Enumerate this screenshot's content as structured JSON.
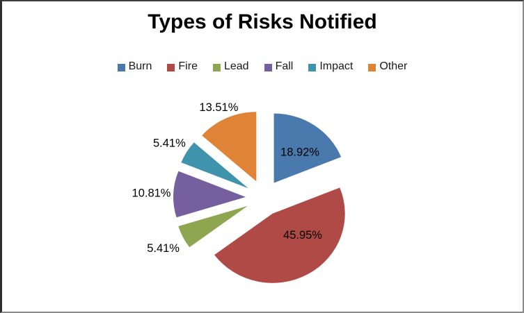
{
  "chart_data": {
    "type": "pie",
    "title": "Types of Risks Notified",
    "categories": [
      "Burn",
      "Fire",
      "Lead",
      "Fall",
      "Impact",
      "Other"
    ],
    "values": [
      18.92,
      45.95,
      5.41,
      10.81,
      5.41,
      13.51
    ],
    "labels": [
      "18.92%",
      "45.95%",
      "5.41%",
      "10.81%",
      "5.41%",
      "13.51%"
    ],
    "unit": "percent",
    "colors": [
      "#4A79AD",
      "#B04A47",
      "#8DA64F",
      "#755F9E",
      "#4093AC",
      "#DF8437"
    ],
    "label_color": "#000000",
    "legend_position": "top",
    "exploded": true,
    "start_angle": "12 o'clock, clockwise",
    "label_placement": [
      "inside",
      "inside",
      "outside",
      "outside",
      "outside",
      "outside"
    ]
  }
}
